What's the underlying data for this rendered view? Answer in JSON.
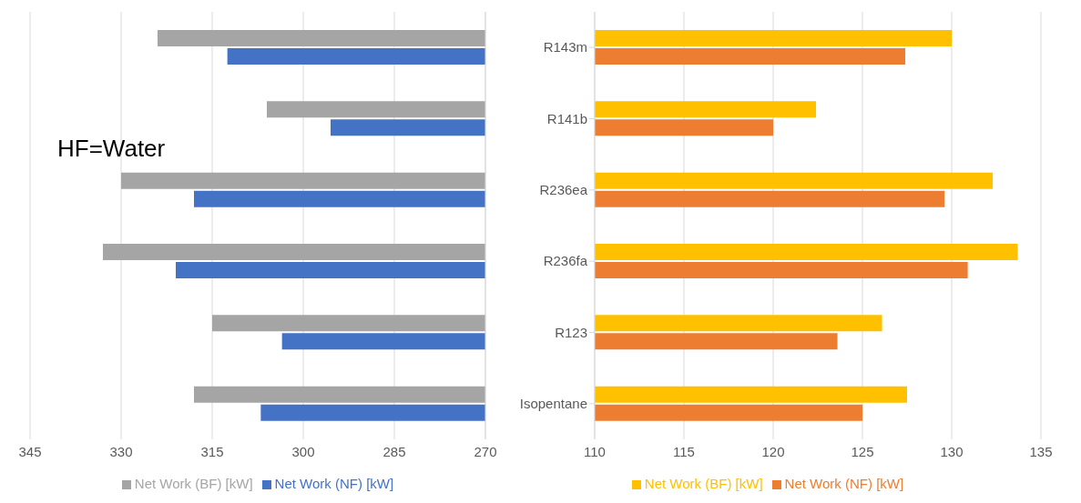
{
  "chart_data": [
    {
      "type": "bar",
      "orientation": "horizontal",
      "categories": [
        null,
        null,
        null,
        null,
        null,
        null
      ],
      "series": [
        {
          "name": "Net Work (BF) [kW]",
          "color": "#a5a5a5",
          "values": [
            324,
            306,
            330,
            333,
            315,
            318
          ]
        },
        {
          "name": "Net Work (NF) [kW]",
          "color": "#4472c4",
          "values": [
            312.5,
            295.5,
            318,
            321,
            303.5,
            307
          ]
        }
      ],
      "xlim": [
        345,
        270
      ],
      "xticks": [
        345,
        330,
        315,
        300,
        285,
        270
      ],
      "grid": "x",
      "legend": "bottom",
      "tick_labels": "x",
      "annotations": [
        "HF=Water"
      ]
    },
    {
      "type": "bar",
      "orientation": "horizontal",
      "categories": [
        "R143m",
        "R141b",
        "R236ea",
        "R236fa",
        "R123",
        "Isopentane"
      ],
      "series": [
        {
          "name": "Net Work (BF) [kW]",
          "color": "#ffc000",
          "values": [
            130,
            122.4,
            132.3,
            133.7,
            126.1,
            127.5
          ]
        },
        {
          "name": "Net Work (NF) [kW]",
          "color": "#ed7d31",
          "values": [
            127.4,
            120,
            129.6,
            130.9,
            123.6,
            125
          ]
        }
      ],
      "xlim": [
        110,
        135
      ],
      "xticks": [
        110,
        115,
        120,
        125,
        130,
        135
      ],
      "grid": "x",
      "legend": "bottom"
    }
  ]
}
